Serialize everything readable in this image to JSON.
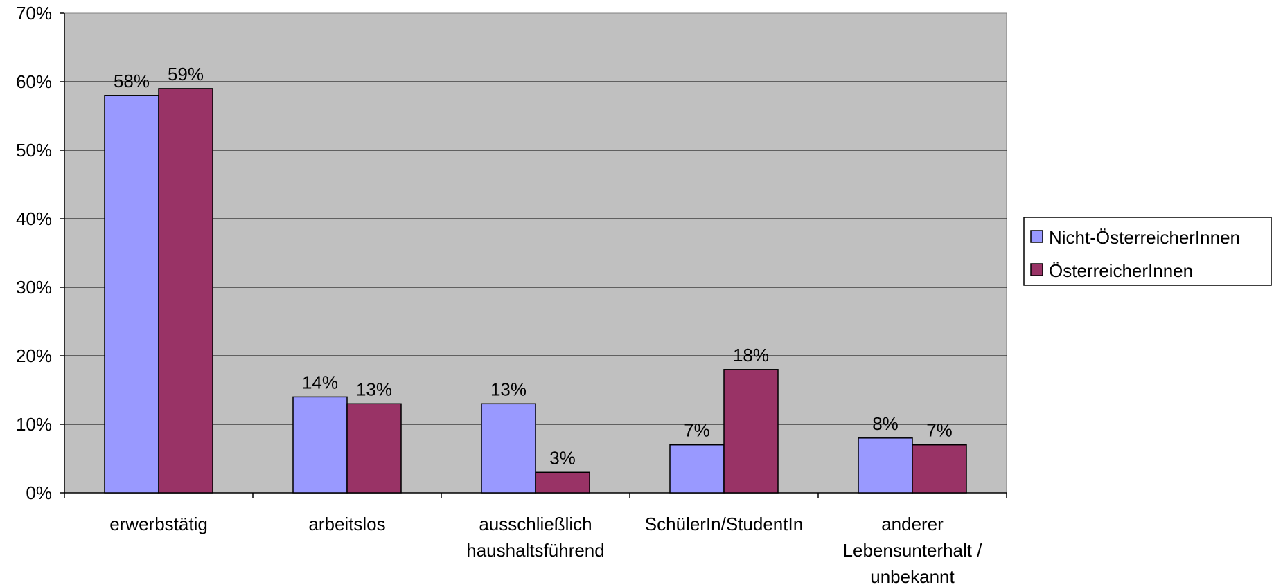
{
  "chart_data": {
    "type": "bar",
    "categories": [
      [
        "erwerbstätig"
      ],
      [
        "arbeitslos"
      ],
      [
        "ausschließlich",
        "haushaltsführend"
      ],
      [
        "SchülerIn/StudentIn"
      ],
      [
        "anderer",
        "Lebensunterhalt /",
        "unbekannt"
      ]
    ],
    "series": [
      {
        "name": "Nicht-ÖsterreicherInnen",
        "color": "#9999FF",
        "values": [
          58,
          14,
          13,
          7,
          8
        ],
        "labels": [
          "58%",
          "14%",
          "13%",
          "7%",
          "8%"
        ]
      },
      {
        "name": "ÖsterreicherInnen",
        "color": "#993366",
        "values": [
          59,
          13,
          3,
          18,
          7
        ],
        "labels": [
          "59%",
          "13%",
          "3%",
          "18%",
          "7%"
        ]
      }
    ],
    "ylim": [
      0,
      70
    ],
    "yticks": [
      0,
      10,
      20,
      30,
      40,
      50,
      60,
      70
    ],
    "ytick_labels": [
      "0%",
      "10%",
      "20%",
      "30%",
      "40%",
      "50%",
      "60%",
      "70%"
    ],
    "plot_background": "#C0C0C0",
    "grid": true,
    "legend_position": "right"
  }
}
